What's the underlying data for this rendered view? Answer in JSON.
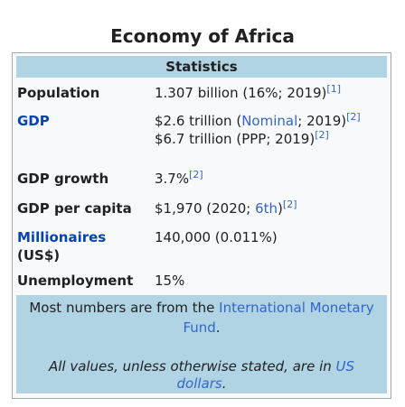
{
  "title": "Economy of Africa",
  "stats_header": "Statistics",
  "rows": {
    "population": {
      "label": "Population",
      "value": "1.307 billion (16%; 2019)",
      "ref": "[1]"
    },
    "gdp": {
      "label": "GDP",
      "line1_pre": "$2.6 trillion (",
      "line1_link": "Nominal",
      "line1_post": "; 2019)",
      "line1_ref": "[2]",
      "line2_value": "$6.7 trillion (PPP; 2019)",
      "line2_ref": "[2]"
    },
    "gdp_growth": {
      "label": "GDP growth",
      "value": "3.7%",
      "ref": "[2]"
    },
    "gdp_per_capita": {
      "label": "GDP per capita",
      "value_pre": "$1,970 (2020; ",
      "value_link": "6th",
      "value_post": ")",
      "ref": "[2]"
    },
    "millionaires": {
      "label_line1": "Millionaires",
      "label_line2": "(US$)",
      "value": "140,000 (0.011%)"
    },
    "unemployment": {
      "label": "Unemployment",
      "value": "15%"
    }
  },
  "footer": {
    "note_pre": "Most numbers are from the ",
    "note_link_1": "International Monetary",
    "note_link_2": "Fund",
    "note_post": ".",
    "values_pre": "All values, unless otherwise stated, are in ",
    "values_link_1": "US",
    "values_link_2": "dollars",
    "values_post": "."
  },
  "colors": {
    "header_bg": "#b0d4e3",
    "link": "#3366cc",
    "label_link": "#0645ad",
    "box_bg": "#f8f9fa",
    "border": "#a2a9b1"
  }
}
